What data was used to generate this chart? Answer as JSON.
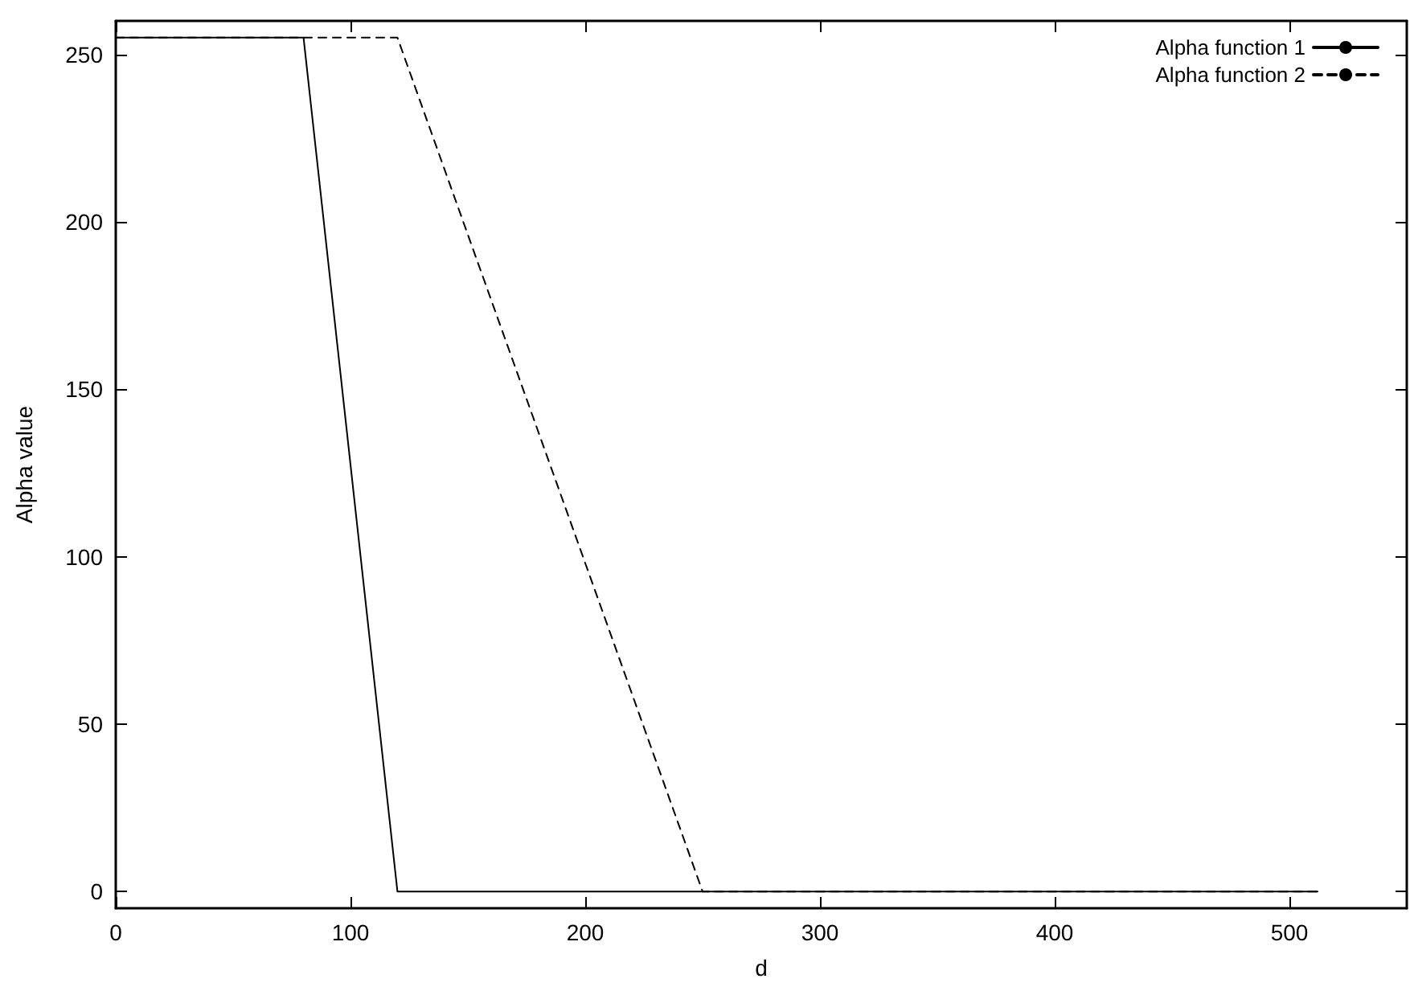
{
  "chart_data": {
    "type": "line",
    "xlabel": "d",
    "ylabel": "Alpha value",
    "xlim": [
      0,
      550
    ],
    "xticks": [
      0,
      100,
      200,
      300,
      400,
      500
    ],
    "ylim": [
      -5,
      260
    ],
    "yticks": [
      0,
      50,
      100,
      150,
      200,
      250
    ],
    "series": [
      {
        "name": "Alpha function 1",
        "color": "#000000",
        "line_style": "solid",
        "x": [
          0,
          80,
          120,
          512
        ],
        "values": [
          255,
          255,
          0,
          0
        ]
      },
      {
        "name": "Alpha function 2",
        "color": "#000000",
        "line_style": "dashed",
        "x": [
          0,
          120,
          250,
          512
        ],
        "values": [
          255,
          255,
          0,
          0
        ]
      }
    ],
    "legend": "top right",
    "grid": false,
    "marker": "none"
  }
}
